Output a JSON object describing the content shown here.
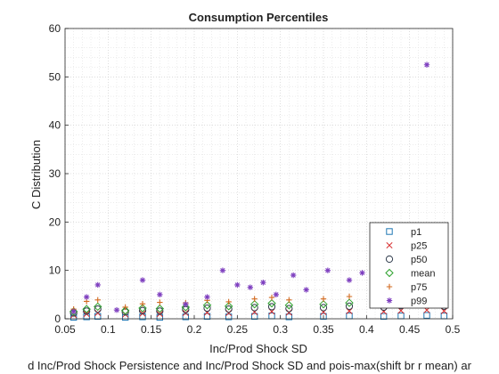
{
  "figure": {
    "title": "Consumption Percentiles",
    "xlabel": "Inc/Prod Shock SD",
    "ylabel": "C Distribution",
    "footer": "d Inc/Prod Shock Persistence and Inc/Prod Shock SD and pois-max(shift br r mean) ar"
  },
  "chart_data": {
    "type": "scatter",
    "title": "Consumption Percentiles",
    "xlabel": "Inc/Prod Shock SD",
    "ylabel": "C Distribution",
    "xlim": [
      0.05,
      0.5
    ],
    "ylim": [
      0,
      60
    ],
    "xticks": [
      "0.05",
      "0.1",
      "0.15",
      "0.2",
      "0.25",
      "0.3",
      "0.35",
      "0.4",
      "0.45",
      "0.5"
    ],
    "yticks": [
      "0",
      "10",
      "20",
      "30",
      "40",
      "50",
      "60"
    ],
    "grid": "on (major and minor, dotted)",
    "legend_position": "bottom-right",
    "colors": {
      "p1": "#1f77b4",
      "p25": "#d62728",
      "p50": "#2f3b4c",
      "mean": "#2ca02c",
      "p75": "#d2691e",
      "p99": "#7e3fbf"
    },
    "series": [
      {
        "name": "p1",
        "marker": "square",
        "x": [
          0.06,
          0.075,
          0.088,
          0.12,
          0.14,
          0.16,
          0.19,
          0.215,
          0.24,
          0.27,
          0.29,
          0.31,
          0.35,
          0.38,
          0.42,
          0.44,
          0.47,
          0.49
        ],
        "y": [
          0.3,
          0.4,
          0.5,
          0.3,
          0.4,
          0.3,
          0.4,
          0.5,
          0.4,
          0.5,
          0.6,
          0.4,
          0.5,
          0.6,
          0.5,
          0.6,
          0.7,
          0.6
        ]
      },
      {
        "name": "p25",
        "marker": "x",
        "x": [
          0.06,
          0.075,
          0.088,
          0.12,
          0.14,
          0.16,
          0.19,
          0.215,
          0.24,
          0.27,
          0.29,
          0.31,
          0.35,
          0.38,
          0.42,
          0.44,
          0.47,
          0.49
        ],
        "y": [
          0.8,
          1.0,
          1.2,
          0.9,
          1.1,
          1.0,
          1.2,
          1.3,
          1.2,
          1.4,
          1.5,
          1.3,
          1.4,
          1.6,
          1.5,
          1.7,
          1.8,
          1.6
        ]
      },
      {
        "name": "p50",
        "marker": "circle",
        "x": [
          0.06,
          0.075,
          0.088,
          0.12,
          0.14,
          0.16,
          0.19,
          0.215,
          0.24,
          0.27,
          0.29,
          0.31,
          0.35,
          0.38,
          0.42,
          0.44,
          0.47,
          0.49
        ],
        "y": [
          1.2,
          1.6,
          2.0,
          1.4,
          1.7,
          1.6,
          1.9,
          2.2,
          2.0,
          2.3,
          2.5,
          2.1,
          2.3,
          2.6,
          2.4,
          2.7,
          2.9,
          2.6
        ]
      },
      {
        "name": "mean",
        "marker": "diamond",
        "x": [
          0.06,
          0.075,
          0.088,
          0.12,
          0.14,
          0.16,
          0.19,
          0.215,
          0.24,
          0.27,
          0.29,
          0.31,
          0.35,
          0.38,
          0.42,
          0.44,
          0.47,
          0.49
        ],
        "y": [
          1.5,
          2.0,
          2.5,
          1.7,
          2.2,
          2.1,
          2.4,
          2.8,
          2.6,
          3.0,
          3.2,
          2.8,
          3.0,
          3.3,
          3.1,
          3.4,
          3.6,
          3.2
        ]
      },
      {
        "name": "p75",
        "marker": "plus",
        "x": [
          0.06,
          0.075,
          0.088,
          0.12,
          0.14,
          0.16,
          0.19,
          0.215,
          0.24,
          0.27,
          0.29,
          0.31,
          0.35,
          0.38,
          0.42,
          0.44,
          0.47,
          0.49
        ],
        "y": [
          2.0,
          3.6,
          3.9,
          2.4,
          3.1,
          3.4,
          3.3,
          3.8,
          3.5,
          4.1,
          4.4,
          3.9,
          4.1,
          4.6,
          4.3,
          4.8,
          5.0,
          4.4
        ]
      },
      {
        "name": "p99",
        "marker": "asterisk",
        "x": [
          0.06,
          0.075,
          0.088,
          0.11,
          0.14,
          0.16,
          0.19,
          0.215,
          0.233,
          0.25,
          0.265,
          0.28,
          0.295,
          0.315,
          0.33,
          0.355,
          0.38,
          0.395,
          0.415,
          0.43,
          0.45,
          0.47,
          0.485,
          0.49
        ],
        "y": [
          1.5,
          4.5,
          7.0,
          1.8,
          8.0,
          5.0,
          3.0,
          4.5,
          10.0,
          7.0,
          6.5,
          7.5,
          5.0,
          9.0,
          6.0,
          10.0,
          8.0,
          9.5,
          6.0,
          5.0,
          10.0,
          52.5,
          15.0,
          13.0
        ]
      }
    ]
  }
}
